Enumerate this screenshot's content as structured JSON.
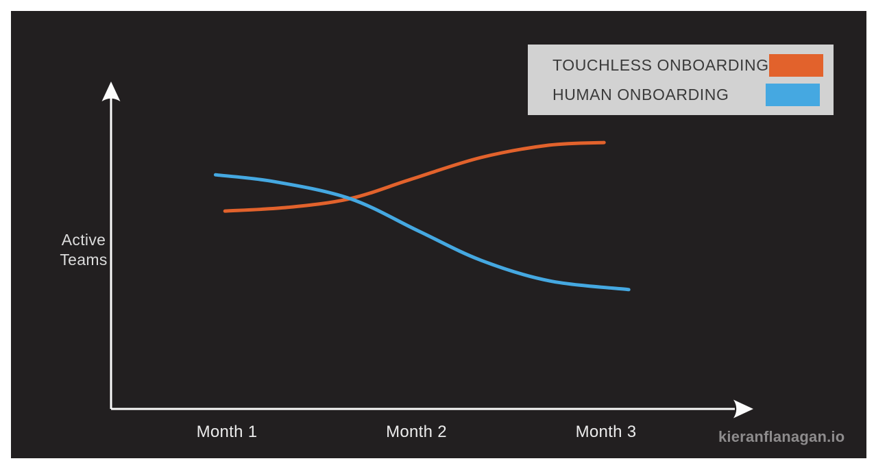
{
  "watermark": "kieranflanagan.io",
  "legend": {
    "items": [
      {
        "label": "TOUCHLESS ONBOARDING",
        "color": "#E2622C"
      },
      {
        "label": "HUMAN ONBOARDING",
        "color": "#45A8E1"
      }
    ]
  },
  "chart_data": {
    "type": "line",
    "title": "",
    "x_axis": {
      "ticks": [
        "Month 1",
        "Month 2",
        "Month 3"
      ],
      "arrow": true,
      "numeric_scale_shown": false
    },
    "y_axis": {
      "label": "Active Teams",
      "arrow": true,
      "numeric_scale_shown": false
    },
    "legend_position": "top-right",
    "grid": false,
    "value_scale_note": "relative index 0-100, no numeric ticks shown",
    "series": [
      {
        "name": "TOUCHLESS ONBOARDING",
        "color": "#E2622C",
        "x_months": [
          0.99,
          1.32,
          1.65,
          1.97,
          2.34,
          2.7,
          2.99
        ],
        "values": [
          60.7,
          61.8,
          64.5,
          70.4,
          77.1,
          80.9,
          81.7
        ]
      },
      {
        "name": "HUMAN ONBOARDING",
        "color": "#45A8E1",
        "x_months": [
          0.94,
          1.25,
          1.65,
          2.01,
          2.34,
          2.7,
          3.12
        ],
        "values": [
          71.8,
          69.7,
          64.5,
          54.6,
          45.6,
          39.3,
          36.6
        ]
      }
    ]
  }
}
